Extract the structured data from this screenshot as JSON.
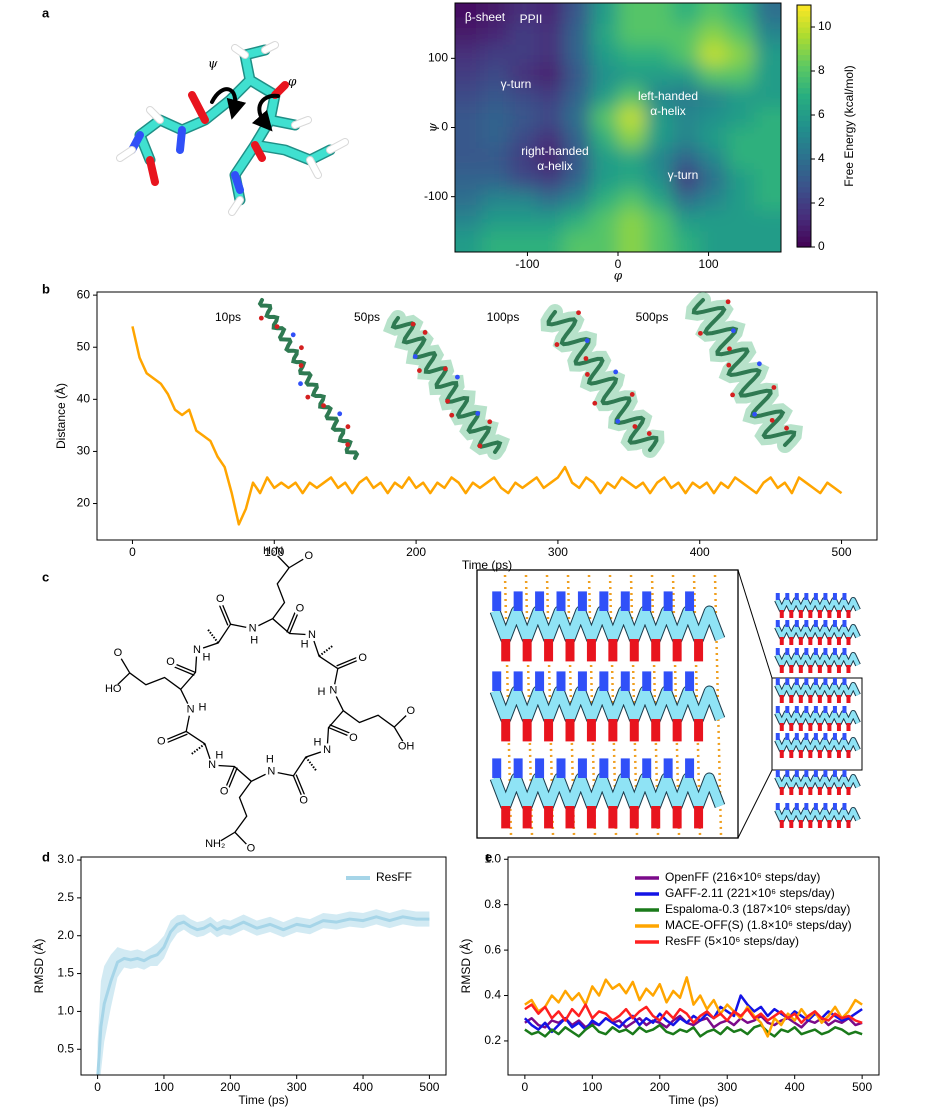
{
  "panel_labels": [
    "a",
    "b",
    "c",
    "d",
    "e"
  ],
  "dipeptide_labels": [
    "ψ",
    "φ"
  ],
  "chem_labels": {
    "ring": [
      "N",
      "H",
      "O",
      "N",
      "H",
      "O",
      "N",
      "H",
      "O",
      "N",
      "H",
      "O",
      "N",
      "H",
      "O",
      "N",
      "H",
      "O",
      "N",
      "H",
      "O",
      "N",
      "H",
      "O"
    ],
    "side_chains": [
      "H₂N",
      "O",
      "O",
      "OH",
      "O",
      "NH₂",
      "HO",
      "O"
    ]
  },
  "chart_data": [
    {
      "type": "contour",
      "x_label": "φ",
      "y_label": "ψ",
      "colorbar_label": "Free Energy (kcal/mol)",
      "xlim": [
        -180,
        180
      ],
      "ylim": [
        -180,
        180
      ],
      "xticks": [
        -100,
        0,
        100
      ],
      "yticks": [
        -100,
        0,
        100
      ],
      "clim": [
        0,
        11
      ],
      "cticks": [
        0,
        2,
        4,
        6,
        8,
        10
      ],
      "colormap": "viridis",
      "x": [
        -165,
        -135,
        -105,
        -75,
        -45,
        -15,
        15,
        45,
        75,
        105,
        135,
        165
      ],
      "y": [
        165,
        135,
        105,
        75,
        45,
        15,
        -15,
        -45,
        -75,
        -105,
        -135,
        -165
      ],
      "z": [
        [
          0.5,
          0.8,
          1.5,
          1.2,
          3,
          6,
          8,
          8,
          7,
          8,
          7,
          4
        ],
        [
          0.8,
          1.2,
          2,
          1.5,
          3.5,
          6.5,
          8,
          8,
          8,
          9,
          8,
          5
        ],
        [
          1.5,
          2,
          2,
          1.5,
          3.5,
          6,
          7,
          7,
          8,
          10,
          9,
          6
        ],
        [
          2,
          2.5,
          1.5,
          1,
          3,
          5.5,
          6,
          6,
          6,
          8,
          8,
          6
        ],
        [
          2.5,
          3,
          2.5,
          2,
          3.5,
          6,
          8,
          5,
          4.5,
          5,
          6,
          6
        ],
        [
          3,
          3.5,
          3,
          2.5,
          4,
          8,
          10,
          6,
          5,
          5.5,
          6,
          7
        ],
        [
          3,
          3.5,
          2.5,
          1.5,
          3.5,
          7,
          9,
          6,
          5,
          6,
          7,
          7
        ],
        [
          3,
          3,
          2,
          1,
          3,
          6,
          6.5,
          5,
          3.5,
          5,
          7,
          7
        ],
        [
          3.5,
          3.5,
          2.5,
          2,
          3.5,
          6,
          6.5,
          5.5,
          2,
          4,
          6,
          7
        ],
        [
          4,
          5,
          5,
          4,
          5,
          7,
          8,
          6.5,
          4,
          5,
          6,
          7
        ],
        [
          5,
          6,
          6,
          6,
          7,
          8,
          9,
          8,
          6,
          6,
          6,
          6
        ],
        [
          6,
          7,
          7,
          7,
          8,
          8,
          9,
          8,
          7,
          6,
          6,
          6
        ]
      ],
      "annotations": [
        [
          "β-sheet"
        ],
        [
          "PPII"
        ],
        [
          "γ-turn"
        ],
        [
          "left-handed",
          "α-helix"
        ],
        [
          "right-handed",
          "α-helix"
        ],
        [
          "γ-turn"
        ]
      ]
    },
    {
      "type": "line",
      "x_label": "Time (ps)",
      "y_label": "Distance (Å)",
      "xlim": [
        -25,
        525
      ],
      "ylim": [
        13,
        60.6
      ],
      "xticks": [
        0,
        100,
        200,
        300,
        400,
        500
      ],
      "yticks": [
        20,
        30,
        40,
        50,
        60
      ],
      "x": [
        0,
        5,
        10,
        15,
        20,
        25,
        30,
        35,
        40,
        45,
        50,
        55,
        60,
        65,
        70,
        75,
        80,
        85,
        90,
        95,
        100,
        105,
        110,
        115,
        120,
        125,
        130,
        135,
        140,
        145,
        150,
        155,
        160,
        165,
        170,
        175,
        180,
        185,
        190,
        195,
        200,
        205,
        210,
        215,
        220,
        225,
        230,
        235,
        240,
        245,
        250,
        255,
        260,
        265,
        270,
        275,
        280,
        285,
        290,
        295,
        300,
        305,
        310,
        315,
        320,
        325,
        330,
        335,
        340,
        345,
        350,
        355,
        360,
        365,
        370,
        375,
        380,
        385,
        390,
        395,
        400,
        405,
        410,
        415,
        420,
        425,
        430,
        435,
        440,
        445,
        450,
        455,
        460,
        465,
        470,
        475,
        480,
        485,
        490,
        495,
        500
      ],
      "series": [
        {
          "color": "#ffa500",
          "values": [
            54,
            48,
            45,
            44,
            43,
            41,
            38,
            37,
            38,
            34,
            33,
            32,
            29,
            27,
            22,
            16,
            19,
            24,
            22,
            25,
            23,
            24,
            23,
            24,
            22,
            24,
            23,
            24,
            25,
            23,
            24,
            22,
            24,
            25,
            23,
            24,
            22,
            24,
            23,
            25,
            23,
            24,
            22,
            24,
            23,
            25,
            24,
            22,
            24,
            23,
            24,
            25,
            23,
            22,
            24,
            23,
            24,
            25,
            23,
            24,
            25,
            27,
            24,
            23,
            25,
            24,
            22,
            24,
            23,
            25,
            24,
            23,
            24,
            22,
            24,
            25,
            23,
            24,
            22,
            24,
            23,
            24,
            22,
            24,
            23,
            25,
            24,
            23,
            22,
            24,
            25,
            23,
            24,
            22,
            25,
            24,
            23,
            22,
            24,
            23,
            22
          ]
        }
      ],
      "annotations": [
        "10ps",
        "50ps",
        "100ps",
        "500ps"
      ]
    },
    {
      "type": "line",
      "x_label": "Time (ps)",
      "y_label": "RMSD (Å)",
      "xlim": [
        -25,
        525
      ],
      "ylim": [
        0.16,
        3.04
      ],
      "xticks": [
        0,
        100,
        200,
        300,
        400,
        500
      ],
      "yticks": [
        0.5,
        {
          "value": 1,
          "label": "1.0"
        },
        1.5,
        {
          "value": 2,
          "label": "2.0"
        },
        2.5,
        {
          "value": 3,
          "label": "3.0"
        }
      ],
      "legend": "upper right",
      "x": [
        0,
        5,
        10,
        20,
        30,
        40,
        50,
        60,
        70,
        80,
        90,
        100,
        110,
        120,
        130,
        140,
        150,
        160,
        170,
        180,
        190,
        200,
        220,
        240,
        260,
        280,
        300,
        320,
        340,
        360,
        380,
        400,
        420,
        440,
        460,
        480,
        500
      ],
      "series": [
        {
          "name": "ResFF",
          "color": "#a6d5e8",
          "values": [
            0.1,
            0.8,
            1.1,
            1.4,
            1.65,
            1.7,
            1.68,
            1.7,
            1.67,
            1.72,
            1.75,
            1.85,
            2.05,
            2.15,
            2.18,
            2.12,
            2.08,
            2.1,
            2.15,
            2.08,
            2.12,
            2.1,
            2.18,
            2.1,
            2.15,
            2.08,
            2.15,
            2.12,
            2.2,
            2.18,
            2.22,
            2.2,
            2.25,
            2.2,
            2.25,
            2.22,
            2.22
          ],
          "errors": [
            0.5,
            0.6,
            0.5,
            0.35,
            0.2,
            0.12,
            0.12,
            0.12,
            0.12,
            0.12,
            0.15,
            0.15,
            0.15,
            0.12,
            0.1,
            0.1,
            0.1,
            0.1,
            0.1,
            0.1,
            0.1,
            0.1,
            0.1,
            0.1,
            0.1,
            0.1,
            0.1,
            0.1,
            0.1,
            0.1,
            0.1,
            0.1,
            0.1,
            0.1,
            0.1,
            0.1,
            0.1
          ]
        }
      ]
    },
    {
      "type": "line",
      "x_label": "Time (ps)",
      "y_label": "RMSD (Å)",
      "xlim": [
        -25,
        525
      ],
      "ylim": [
        0.05,
        1.01
      ],
      "xticks": [
        0,
        100,
        200,
        300,
        400,
        500
      ],
      "yticks": [
        0.2,
        0.4,
        0.6,
        0.8,
        {
          "value": 1,
          "label": "1.0"
        }
      ],
      "legend": "upper right",
      "x": [
        0,
        10,
        20,
        30,
        40,
        50,
        60,
        70,
        80,
        90,
        100,
        110,
        120,
        130,
        140,
        150,
        160,
        170,
        180,
        190,
        200,
        210,
        220,
        230,
        240,
        250,
        260,
        270,
        280,
        290,
        300,
        310,
        320,
        330,
        340,
        350,
        360,
        370,
        380,
        390,
        400,
        410,
        420,
        430,
        440,
        450,
        460,
        470,
        480,
        490,
        500
      ],
      "series": [
        {
          "name": "OpenFF (216×10⁶ steps/day)",
          "color": "#7b0a8a",
          "values": [
            0.28,
            0.3,
            0.27,
            0.26,
            0.29,
            0.28,
            0.3,
            0.27,
            0.29,
            0.26,
            0.28,
            0.27,
            0.3,
            0.28,
            0.29,
            0.26,
            0.28,
            0.3,
            0.27,
            0.29,
            0.28,
            0.26,
            0.29,
            0.31,
            0.28,
            0.27,
            0.29,
            0.3,
            0.26,
            0.28,
            0.29,
            0.27,
            0.3,
            0.28,
            0.29,
            0.31,
            0.28,
            0.27,
            0.29,
            0.3,
            0.28,
            0.26,
            0.29,
            0.28,
            0.3,
            0.27,
            0.29,
            0.28,
            0.3,
            0.27,
            0.28
          ]
        },
        {
          "name": "GAFF-2.11 (221×10⁶ steps/day)",
          "color": "#1414e6",
          "values": [
            0.3,
            0.27,
            0.25,
            0.28,
            0.24,
            0.27,
            0.3,
            0.26,
            0.28,
            0.25,
            0.29,
            0.27,
            0.3,
            0.28,
            0.26,
            0.29,
            0.31,
            0.27,
            0.3,
            0.28,
            0.32,
            0.29,
            0.27,
            0.3,
            0.28,
            0.31,
            0.29,
            0.32,
            0.3,
            0.35,
            0.33,
            0.31,
            0.4,
            0.36,
            0.33,
            0.35,
            0.31,
            0.34,
            0.32,
            0.3,
            0.33,
            0.31,
            0.29,
            0.32,
            0.3,
            0.33,
            0.31,
            0.29,
            0.3,
            0.32,
            0.34
          ]
        },
        {
          "name": "Espaloma-0.3 (187×10⁶ steps/day)",
          "color": "#1a7a1a",
          "values": [
            0.25,
            0.23,
            0.24,
            0.22,
            0.25,
            0.23,
            0.26,
            0.24,
            0.22,
            0.25,
            0.27,
            0.24,
            0.23,
            0.26,
            0.24,
            0.25,
            0.23,
            0.26,
            0.24,
            0.25,
            0.27,
            0.24,
            0.23,
            0.25,
            0.24,
            0.26,
            0.22,
            0.24,
            0.25,
            0.23,
            0.26,
            0.24,
            0.25,
            0.23,
            0.26,
            0.27,
            0.24,
            0.22,
            0.25,
            0.24,
            0.26,
            0.23,
            0.24,
            0.25,
            0.23,
            0.24,
            0.26,
            0.25,
            0.23,
            0.24,
            0.23
          ]
        },
        {
          "name": "MACE-OFF(S) (1.8×10⁶ steps/day)",
          "color": "#ffa500",
          "values": [
            0.36,
            0.38,
            0.33,
            0.35,
            0.4,
            0.37,
            0.42,
            0.38,
            0.41,
            0.36,
            0.44,
            0.4,
            0.47,
            0.43,
            0.45,
            0.41,
            0.46,
            0.38,
            0.43,
            0.4,
            0.45,
            0.37,
            0.42,
            0.39,
            0.48,
            0.36,
            0.4,
            0.34,
            0.38,
            0.32,
            0.36,
            0.33,
            0.3,
            0.35,
            0.31,
            0.28,
            0.22,
            0.3,
            0.27,
            0.32,
            0.29,
            0.34,
            0.3,
            0.33,
            0.28,
            0.31,
            0.35,
            0.3,
            0.33,
            0.38,
            0.36
          ]
        },
        {
          "name": "ResFF (5×10⁶ steps/day)",
          "color": "#ff2020",
          "values": [
            0.34,
            0.36,
            0.32,
            0.35,
            0.3,
            0.33,
            0.29,
            0.34,
            0.31,
            0.36,
            0.3,
            0.33,
            0.32,
            0.29,
            0.31,
            0.34,
            0.3,
            0.33,
            0.35,
            0.31,
            0.29,
            0.33,
            0.3,
            0.34,
            0.32,
            0.28,
            0.31,
            0.33,
            0.3,
            0.32,
            0.29,
            0.33,
            0.31,
            0.34,
            0.3,
            0.32,
            0.29,
            0.31,
            0.33,
            0.3,
            0.32,
            0.28,
            0.31,
            0.33,
            0.3,
            0.29,
            0.32,
            0.3,
            0.31,
            0.29,
            0.28
          ]
        }
      ]
    }
  ]
}
